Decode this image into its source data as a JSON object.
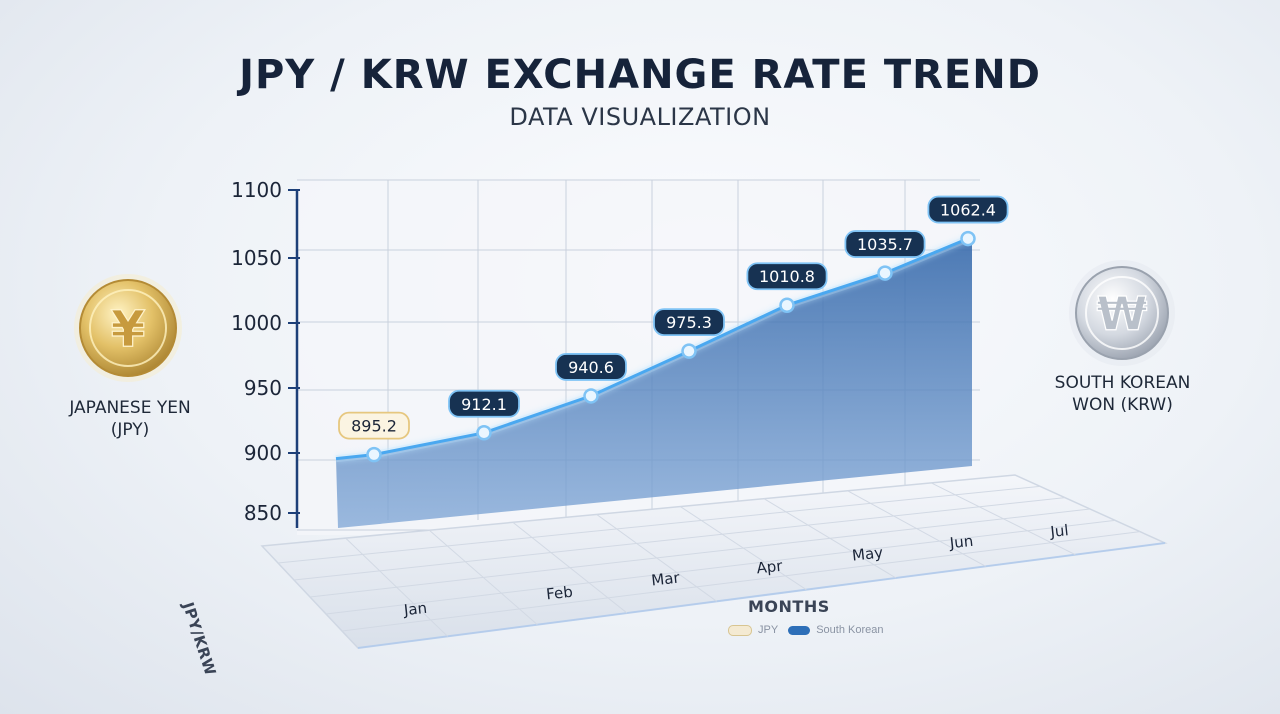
{
  "chart_data": {
    "type": "area",
    "title": "JPY / KRW EXCHANGE RATE TREND",
    "subtitle": "DATA VISUALIZATION",
    "ylabel": "JPY/KRW",
    "xlabel": "MONTHS",
    "ylim": [
      850,
      1100
    ],
    "yticks": [
      850,
      900,
      950,
      1000,
      1050,
      1100
    ],
    "categories": [
      "Jan",
      "Feb",
      "Mar",
      "Apr",
      "May",
      "Jun",
      "Jul"
    ],
    "series": [
      {
        "name": "JPY",
        "values": [
          895.2,
          912.1,
          940.6,
          975.3,
          1010.8,
          1035.7,
          1062.4
        ]
      }
    ],
    "data_labels": [
      "895.2",
      "912.1",
      "940.6",
      "975.3",
      "1010.8",
      "1035.7",
      "1062.4"
    ],
    "grid": true,
    "legend": {
      "position": "bottom-center",
      "items": [
        {
          "label": "JPY",
          "color": "#f4ead2"
        },
        {
          "label": "South Korean",
          "color": "#2d6fb8"
        }
      ]
    },
    "colors": {
      "line": "#4aa8f0",
      "area": "#3d6aa6",
      "text": "#16233a"
    }
  },
  "coins": {
    "left": {
      "symbol": "¥",
      "line1": "JAPANESE YEN",
      "line2": "(JPY)"
    },
    "right": {
      "symbol": "₩",
      "line1": "SOUTH KOREAN",
      "line2": "WON (KRW)"
    }
  }
}
